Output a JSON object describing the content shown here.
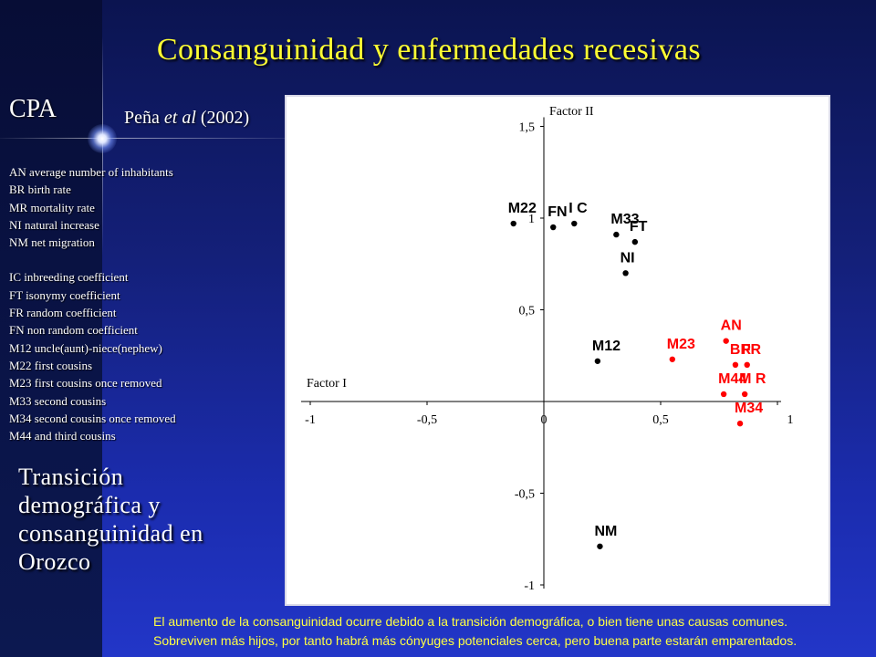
{
  "title": "Consanguinidad y enfermedades recesivas",
  "cpa": "CPA",
  "citation": {
    "author": "Peña",
    "etal": "et al",
    "year": "(2002)"
  },
  "legend": [
    "AN  average number of inhabitants",
    "BR birth rate",
    "MR mortality rate",
    "NI natural increase",
    "NM net migration",
    "",
    "IC inbreeding coefficient",
    "FT isonymy coefficient",
    "FR random coefficient",
    "FN non random coefficient",
    "M12 uncle(aunt)-niece(nephew)",
    "M22 first cousins",
    "M23 first cousins once removed",
    "M33 second cousins",
    "M34 second cousins once removed",
    "M44 and third cousins"
  ],
  "subtitle": [
    "Transición",
    "demográfica y",
    "consanguinidad  en",
    "Orozco"
  ],
  "footnote": [
    "El aumento de la consanguinidad ocurre debido a la transición demográfica, o bien tiene unas causas comunes.",
    "Sobreviven más hijos, por tanto habrá más cónyuges potenciales cerca, pero buena parte estarán emparentados."
  ],
  "colors": {
    "title": "#ffff33",
    "black_points": "#000000",
    "red_points": "#ff0000",
    "footnote": "#ffff44"
  },
  "chart_data": {
    "type": "scatter",
    "xlabel": "Factor I",
    "ylabel": "Factor II",
    "xlim": [
      -1,
      1
    ],
    "ylim": [
      -1,
      1.5
    ],
    "x_ticks": [
      "-1",
      "-0,5",
      "0",
      "0,5",
      "1"
    ],
    "x_tick_values": [
      -1,
      -0.5,
      0,
      0.5,
      1
    ],
    "y_ticks": [
      "1,5",
      "1",
      "0,5",
      "-0,5",
      "-1"
    ],
    "y_tick_values": [
      1.5,
      1,
      0.5,
      -0.5,
      -1
    ],
    "series": [
      {
        "color": "#000000",
        "points": [
          {
            "label": "M22",
            "x": -0.13,
            "y": 0.97
          },
          {
            "label": "FN",
            "x": 0.04,
            "y": 0.95
          },
          {
            "label": "I C",
            "x": 0.13,
            "y": 0.97
          },
          {
            "label": "M33",
            "x": 0.31,
            "y": 0.91
          },
          {
            "label": "FT",
            "x": 0.39,
            "y": 0.87
          },
          {
            "label": "NI",
            "x": 0.35,
            "y": 0.7
          },
          {
            "label": "M12",
            "x": 0.23,
            "y": 0.22
          },
          {
            "label": "NM",
            "x": 0.24,
            "y": -0.79
          }
        ]
      },
      {
        "color": "#ff0000",
        "points": [
          {
            "label": "M23",
            "x": 0.55,
            "y": 0.23
          },
          {
            "label": "AN",
            "x": 0.78,
            "y": 0.33
          },
          {
            "label": "FR",
            "x": 0.87,
            "y": 0.2
          },
          {
            "label": "BR",
            "x": 0.82,
            "y": 0.2
          },
          {
            "label": "M44",
            "x": 0.77,
            "y": 0.04
          },
          {
            "label": "M R",
            "x": 0.86,
            "y": 0.04
          },
          {
            "label": "M34",
            "x": 0.84,
            "y": -0.12
          }
        ]
      }
    ]
  }
}
